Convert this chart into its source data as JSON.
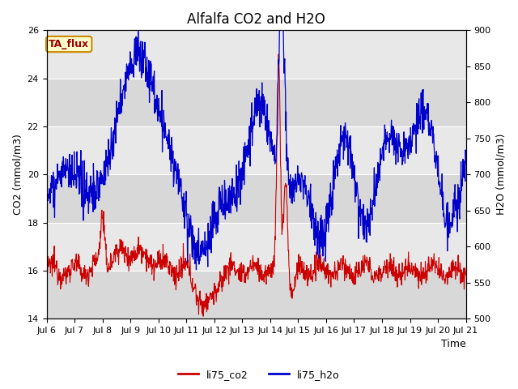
{
  "title": "Alfalfa CO2 and H2O",
  "xlabel": "Time",
  "ylabel_left": "CO2 (mmol/m3)",
  "ylabel_right": "H2O (mmol/m3)",
  "ylim_left": [
    14,
    26
  ],
  "ylim_right": [
    500,
    900
  ],
  "yticks_left": [
    14,
    16,
    18,
    20,
    22,
    24,
    26
  ],
  "yticks_right": [
    500,
    550,
    600,
    650,
    700,
    750,
    800,
    850,
    900
  ],
  "xtick_labels": [
    "Jul 6",
    "Jul 7",
    "Jul 8",
    "Jul 9",
    "Jul 10",
    "Jul 11",
    "Jul 12",
    "Jul 13",
    "Jul 14",
    "Jul 15",
    "Jul 16",
    "Jul 17",
    "Jul 18",
    "Jul 19",
    "Jul 20",
    "Jul 21"
  ],
  "color_co2": "#cc0000",
  "color_h2o": "#0000cc",
  "legend_labels": [
    "li75_co2",
    "li75_h2o"
  ],
  "annotation_text": "TA_flux",
  "annotation_bg": "#ffffcc",
  "annotation_border": "#cc8800",
  "fig_bg": "#ffffff",
  "plot_bg": "#e8e8e8",
  "title_fontsize": 12,
  "axis_fontsize": 9,
  "tick_fontsize": 8
}
